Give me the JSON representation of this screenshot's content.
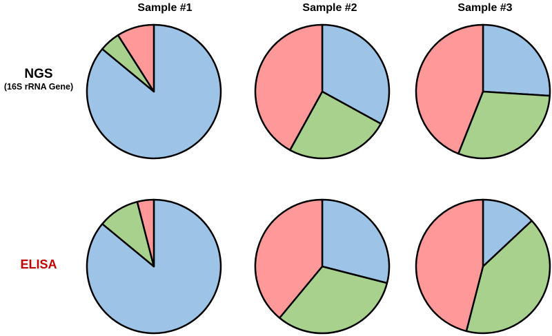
{
  "header": {
    "samples": [
      "Sample #1",
      "Sample #2",
      "Sample #3"
    ]
  },
  "rows": [
    {
      "label": "NGS",
      "sublabel": "(16S rRNA Gene)",
      "color": "#000000"
    },
    {
      "label": "ELISA",
      "color": "#C00000"
    }
  ],
  "colors": {
    "blue": "#9DC3E6",
    "green": "#A9D18E",
    "pink": "#FF9999"
  },
  "stroke_color": "#000000",
  "stroke_width": 2.5,
  "background": "#FFFFFF",
  "chart_data": [
    {
      "type": "pie",
      "row": "NGS (16S rRNA Gene)",
      "column": "Sample #1",
      "start_angle_deg": 0,
      "direction": "clockwise",
      "unit": "percent",
      "slices": [
        {
          "name": "blue",
          "value": 86
        },
        {
          "name": "green",
          "value": 5
        },
        {
          "name": "pink",
          "value": 9
        }
      ]
    },
    {
      "type": "pie",
      "row": "NGS (16S rRNA Gene)",
      "column": "Sample #2",
      "start_angle_deg": 0,
      "direction": "clockwise",
      "unit": "percent",
      "slices": [
        {
          "name": "blue",
          "value": 33
        },
        {
          "name": "green",
          "value": 25
        },
        {
          "name": "pink",
          "value": 42
        }
      ]
    },
    {
      "type": "pie",
      "row": "NGS (16S rRNA Gene)",
      "column": "Sample #3",
      "start_angle_deg": 0,
      "direction": "clockwise",
      "unit": "percent",
      "slices": [
        {
          "name": "blue",
          "value": 26
        },
        {
          "name": "green",
          "value": 30
        },
        {
          "name": "pink",
          "value": 44
        }
      ]
    },
    {
      "type": "pie",
      "row": "ELISA",
      "column": "Sample #1",
      "start_angle_deg": 0,
      "direction": "clockwise",
      "unit": "percent",
      "slices": [
        {
          "name": "blue",
          "value": 86
        },
        {
          "name": "green",
          "value": 10
        },
        {
          "name": "pink",
          "value": 4
        }
      ]
    },
    {
      "type": "pie",
      "row": "ELISA",
      "column": "Sample #2",
      "start_angle_deg": 0,
      "direction": "clockwise",
      "unit": "percent",
      "slices": [
        {
          "name": "blue",
          "value": 29
        },
        {
          "name": "green",
          "value": 32
        },
        {
          "name": "pink",
          "value": 39
        }
      ]
    },
    {
      "type": "pie",
      "row": "ELISA",
      "column": "Sample #3",
      "start_angle_deg": 0,
      "direction": "clockwise",
      "unit": "percent",
      "slices": [
        {
          "name": "blue",
          "value": 13
        },
        {
          "name": "green",
          "value": 41
        },
        {
          "name": "pink",
          "value": 46
        }
      ]
    }
  ]
}
